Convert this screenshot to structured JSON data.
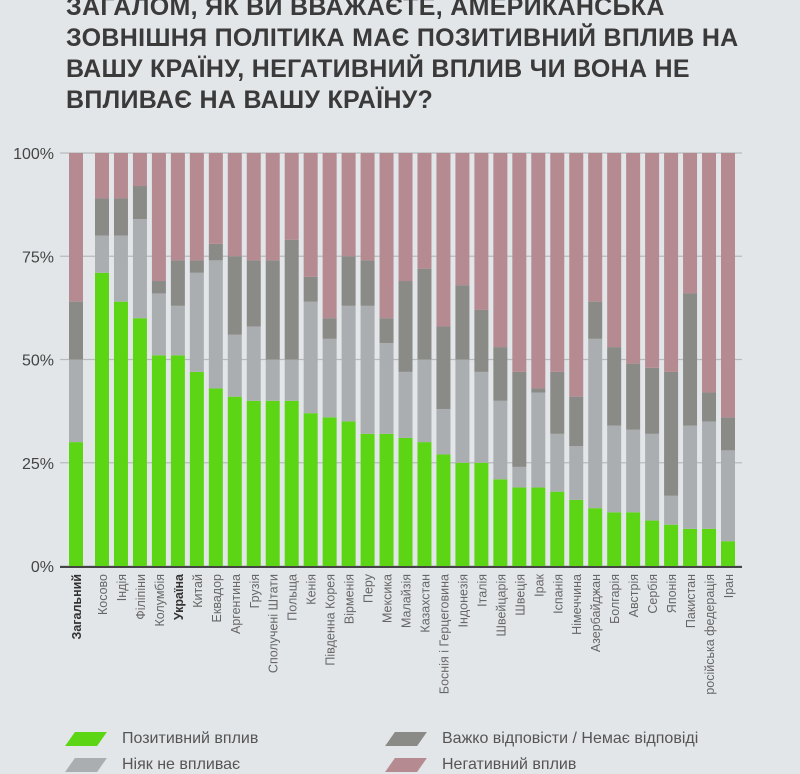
{
  "title": "ЗАГАЛОМ, ЯК ВИ ВВАЖАЄТЕ, АМЕРИКАНСЬКА ЗОВНІШНЯ ПОЛІТИКА МАЄ ПОЗИТИВНИЙ ВПЛИВ НА ВАШУ КРАЇНУ, НЕГАТИВНИЙ ВПЛИВ ЧИ ВОНА НЕ ВПЛИВАЄ НА ВАШУ КРАЇНУ?",
  "colors": {
    "positive": "#5cd614",
    "neutral": "#abaeb1",
    "dont_know": "#8a8a86",
    "negative": "#b58b91"
  },
  "chart_data": {
    "type": "bar",
    "stacked": true,
    "orientation": "vertical",
    "title": "ЗАГАЛОМ, ЯК ВИ ВВАЖАЄТЕ, АМЕРИКАНСЬКА ЗОВНІШНЯ ПОЛІТИКА МАЄ ПОЗИТИВНИЙ ВПЛИВ НА ВАШУ КРАЇНУ, НЕГАТИВНИЙ ВПЛИВ ЧИ ВОНА НЕ ВПЛИВАЄ НА ВАШУ КРАЇНУ?",
    "ylim": [
      0,
      100
    ],
    "yticks": [
      "0%",
      "25%",
      "50%",
      "75%",
      "100%"
    ],
    "grid": true,
    "legend_placement": "bottom",
    "bold_categories": [
      "Загальний",
      "Україна"
    ],
    "categories": [
      "Загальний",
      "Косово",
      "Індія",
      "Філіпіни",
      "Колумбія",
      "Україна",
      "Китай",
      "Еквадор",
      "Аргентина",
      "Грузія",
      "Сполучені Штати",
      "Польща",
      "Кенія",
      "Південна Корея",
      "Вірменія",
      "Перу",
      "Мексика",
      "Малайзія",
      "Казахстан",
      "Боснія і Герцеговина",
      "Індонезія",
      "Італія",
      "Швейцарія",
      "Швеція",
      "Ірак",
      "Іспанія",
      "Німеччина",
      "Азербайджан",
      "Болгарія",
      "Австрія",
      "Сербія",
      "Японія",
      "Пакистан",
      "російська федерація",
      "Іран"
    ],
    "series": [
      {
        "name": "Позитивний вплив",
        "color": "#5cd614",
        "values": [
          30,
          71,
          64,
          60,
          51,
          51,
          47,
          43,
          41,
          40,
          40,
          40,
          37,
          36,
          35,
          32,
          32,
          31,
          30,
          27,
          25,
          25,
          21,
          19,
          19,
          18,
          16,
          14,
          13,
          13,
          11,
          10,
          9,
          9,
          6
        ]
      },
      {
        "name": "Ніяк не впливає",
        "color": "#abaeb1",
        "values": [
          20,
          9,
          16,
          24,
          15,
          12,
          24,
          31,
          15,
          18,
          10,
          10,
          27,
          19,
          28,
          31,
          22,
          16,
          20,
          11,
          25,
          22,
          19,
          5,
          23,
          14,
          13,
          41,
          21,
          20,
          21,
          7,
          25,
          26,
          22
        ]
      },
      {
        "name": "Важко відповісти / Немає відповіді",
        "color": "#8a8a86",
        "values": [
          14,
          9,
          9,
          8,
          3,
          11,
          3,
          4,
          19,
          16,
          24,
          29,
          6,
          5,
          12,
          11,
          6,
          22,
          22,
          20,
          18,
          15,
          13,
          23,
          1,
          15,
          12,
          9,
          19,
          16,
          16,
          30,
          32,
          7,
          8
        ]
      },
      {
        "name": "Негативний вплив",
        "color": "#b58b91",
        "values": [
          36,
          11,
          11,
          8,
          31,
          26,
          26,
          22,
          25,
          26,
          26,
          21,
          30,
          40,
          25,
          26,
          40,
          31,
          28,
          42,
          32,
          38,
          47,
          53,
          57,
          53,
          59,
          36,
          47,
          51,
          52,
          53,
          34,
          58,
          64
        ]
      }
    ]
  },
  "legend": [
    {
      "label": "Позитивний вплив"
    },
    {
      "label": "Важко відповісти / Немає відповіді"
    },
    {
      "label": "Ніяк не впливає"
    },
    {
      "label": "Негативний вплив"
    }
  ]
}
